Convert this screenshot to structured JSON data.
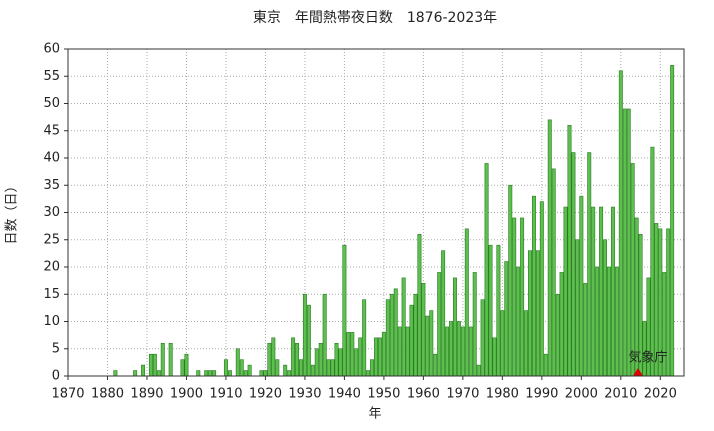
{
  "chart_data": {
    "type": "bar",
    "title": "東京　年間熱帯夜日数　1876-2023年",
    "x_label": "年",
    "y_label": "日数（日）",
    "annotation": "気象庁",
    "color": "#5cbf4e",
    "edge_color": "#2a7a22",
    "grid": true,
    "xlim": [
      1870,
      2026
    ],
    "ylim": [
      0,
      60
    ],
    "xticks": [
      1870,
      1880,
      1890,
      1900,
      1910,
      1920,
      1930,
      1940,
      1950,
      1960,
      1970,
      1980,
      1990,
      2000,
      2010,
      2020
    ],
    "yticks": [
      0,
      5,
      10,
      15,
      20,
      25,
      30,
      35,
      40,
      45,
      50,
      55,
      60
    ],
    "x": [
      1876,
      1877,
      1878,
      1879,
      1880,
      1881,
      1882,
      1883,
      1884,
      1885,
      1886,
      1887,
      1888,
      1889,
      1890,
      1891,
      1892,
      1893,
      1894,
      1895,
      1896,
      1897,
      1898,
      1899,
      1900,
      1901,
      1902,
      1903,
      1904,
      1905,
      1906,
      1907,
      1908,
      1909,
      1910,
      1911,
      1912,
      1913,
      1914,
      1915,
      1916,
      1917,
      1918,
      1919,
      1920,
      1921,
      1922,
      1923,
      1924,
      1925,
      1926,
      1927,
      1928,
      1929,
      1930,
      1931,
      1932,
      1933,
      1934,
      1935,
      1936,
      1937,
      1938,
      1939,
      1940,
      1941,
      1942,
      1943,
      1944,
      1945,
      1946,
      1947,
      1948,
      1949,
      1950,
      1951,
      1952,
      1953,
      1954,
      1955,
      1956,
      1957,
      1958,
      1959,
      1960,
      1961,
      1962,
      1963,
      1964,
      1965,
      1966,
      1967,
      1968,
      1969,
      1970,
      1971,
      1972,
      1973,
      1974,
      1975,
      1976,
      1977,
      1978,
      1979,
      1980,
      1981,
      1982,
      1983,
      1984,
      1985,
      1986,
      1987,
      1988,
      1989,
      1990,
      1991,
      1992,
      1993,
      1994,
      1995,
      1996,
      1997,
      1998,
      1999,
      2000,
      2001,
      2002,
      2003,
      2004,
      2005,
      2006,
      2007,
      2008,
      2009,
      2010,
      2011,
      2012,
      2013,
      2014,
      2015,
      2016,
      2017,
      2018,
      2019,
      2020,
      2021,
      2022,
      2023
    ],
    "values": [
      0,
      0,
      0,
      0,
      0,
      0,
      1,
      0,
      0,
      0,
      0,
      1,
      0,
      2,
      0,
      4,
      4,
      1,
      6,
      0,
      6,
      0,
      0,
      3,
      4,
      0,
      0,
      1,
      0,
      1,
      1,
      1,
      0,
      0,
      3,
      1,
      0,
      5,
      3,
      1,
      2,
      0,
      0,
      1,
      1,
      6,
      7,
      3,
      0,
      2,
      1,
      7,
      6,
      3,
      15,
      13,
      2,
      5,
      6,
      15,
      3,
      3,
      6,
      5,
      24,
      8,
      8,
      5,
      7,
      14,
      1,
      3,
      7,
      7,
      8,
      14,
      15,
      16,
      9,
      18,
      9,
      13,
      15,
      26,
      17,
      11,
      12,
      4,
      19,
      23,
      9,
      10,
      18,
      10,
      9,
      27,
      9,
      19,
      2,
      14,
      39,
      24,
      7,
      24,
      12,
      21,
      35,
      29,
      20,
      29,
      12,
      23,
      33,
      23,
      32,
      4,
      47,
      38,
      15,
      19,
      31,
      46,
      41,
      25,
      33,
      17,
      41,
      31,
      20,
      31,
      25,
      20,
      31,
      20,
      56,
      49,
      49,
      39,
      29,
      26,
      10,
      18,
      42,
      28,
      27,
      19,
      27,
      57
    ]
  }
}
